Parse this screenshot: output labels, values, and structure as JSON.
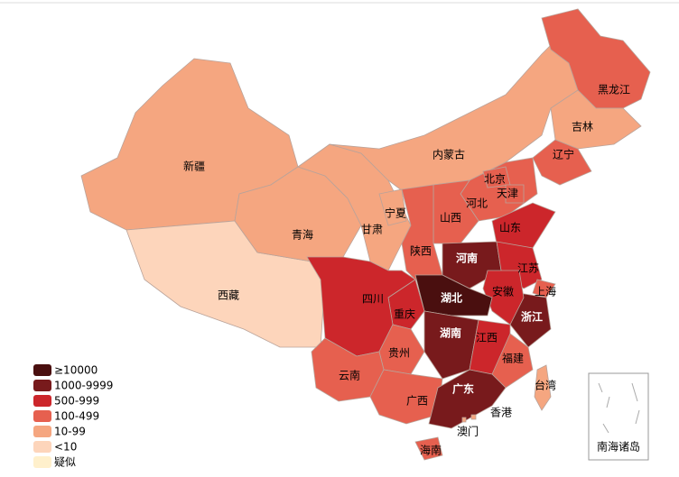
{
  "map": {
    "regions": [
      {
        "name": "新疆",
        "color": "#f5a680"
      },
      {
        "name": "西藏",
        "color": "#fdd5bb"
      },
      {
        "name": "青海",
        "color": "#f5a680"
      },
      {
        "name": "甘肃",
        "color": "#f5a680"
      },
      {
        "name": "内蒙古",
        "color": "#f5a680"
      },
      {
        "name": "宁夏",
        "color": "#f5a680"
      },
      {
        "name": "黑龙江",
        "color": "#e6604f"
      },
      {
        "name": "吉林",
        "color": "#f5a680"
      },
      {
        "name": "辽宁",
        "color": "#e6604f"
      },
      {
        "name": "河北",
        "color": "#e6604f"
      },
      {
        "name": "北京",
        "color": "#e6604f"
      },
      {
        "name": "天津",
        "color": "#e6604f"
      },
      {
        "name": "山西",
        "color": "#e6604f"
      },
      {
        "name": "山东",
        "color": "#cc262b"
      },
      {
        "name": "河南",
        "color": "#781a1c"
      },
      {
        "name": "陕西",
        "color": "#e6604f"
      },
      {
        "name": "江苏",
        "color": "#cc262b"
      },
      {
        "name": "上海",
        "color": "#e6604f"
      },
      {
        "name": "浙江",
        "color": "#781a1c"
      },
      {
        "name": "安徽",
        "color": "#cc262b"
      },
      {
        "name": "湖北",
        "color": "#4a0f0f"
      },
      {
        "name": "重庆",
        "color": "#cc262b"
      },
      {
        "name": "四川",
        "color": "#cc262b"
      },
      {
        "name": "湖南",
        "color": "#781a1c"
      },
      {
        "name": "江西",
        "color": "#cc262b"
      },
      {
        "name": "福建",
        "color": "#e6604f"
      },
      {
        "name": "贵州",
        "color": "#e6604f"
      },
      {
        "name": "云南",
        "color": "#e6604f"
      },
      {
        "name": "广西",
        "color": "#e6604f"
      },
      {
        "name": "广东",
        "color": "#781a1c"
      },
      {
        "name": "海南",
        "color": "#e6604f"
      },
      {
        "name": "台湾",
        "color": "#f5a680"
      },
      {
        "name": "香港",
        "color": "#f5a680"
      },
      {
        "name": "澳门",
        "color": "#f5a680"
      }
    ],
    "legend": [
      {
        "label": "≥10000",
        "color": "#4a0f0f"
      },
      {
        "label": "1000-9999",
        "color": "#781a1c"
      },
      {
        "label": "500-999",
        "color": "#cc262b"
      },
      {
        "label": "100-499",
        "color": "#e6604f"
      },
      {
        "label": "10-99",
        "color": "#f5a680"
      },
      {
        "label": "<10",
        "color": "#fdd5bb"
      },
      {
        "label": "疑似",
        "color": "#fff0cc"
      }
    ],
    "inset": "南海诸岛"
  }
}
